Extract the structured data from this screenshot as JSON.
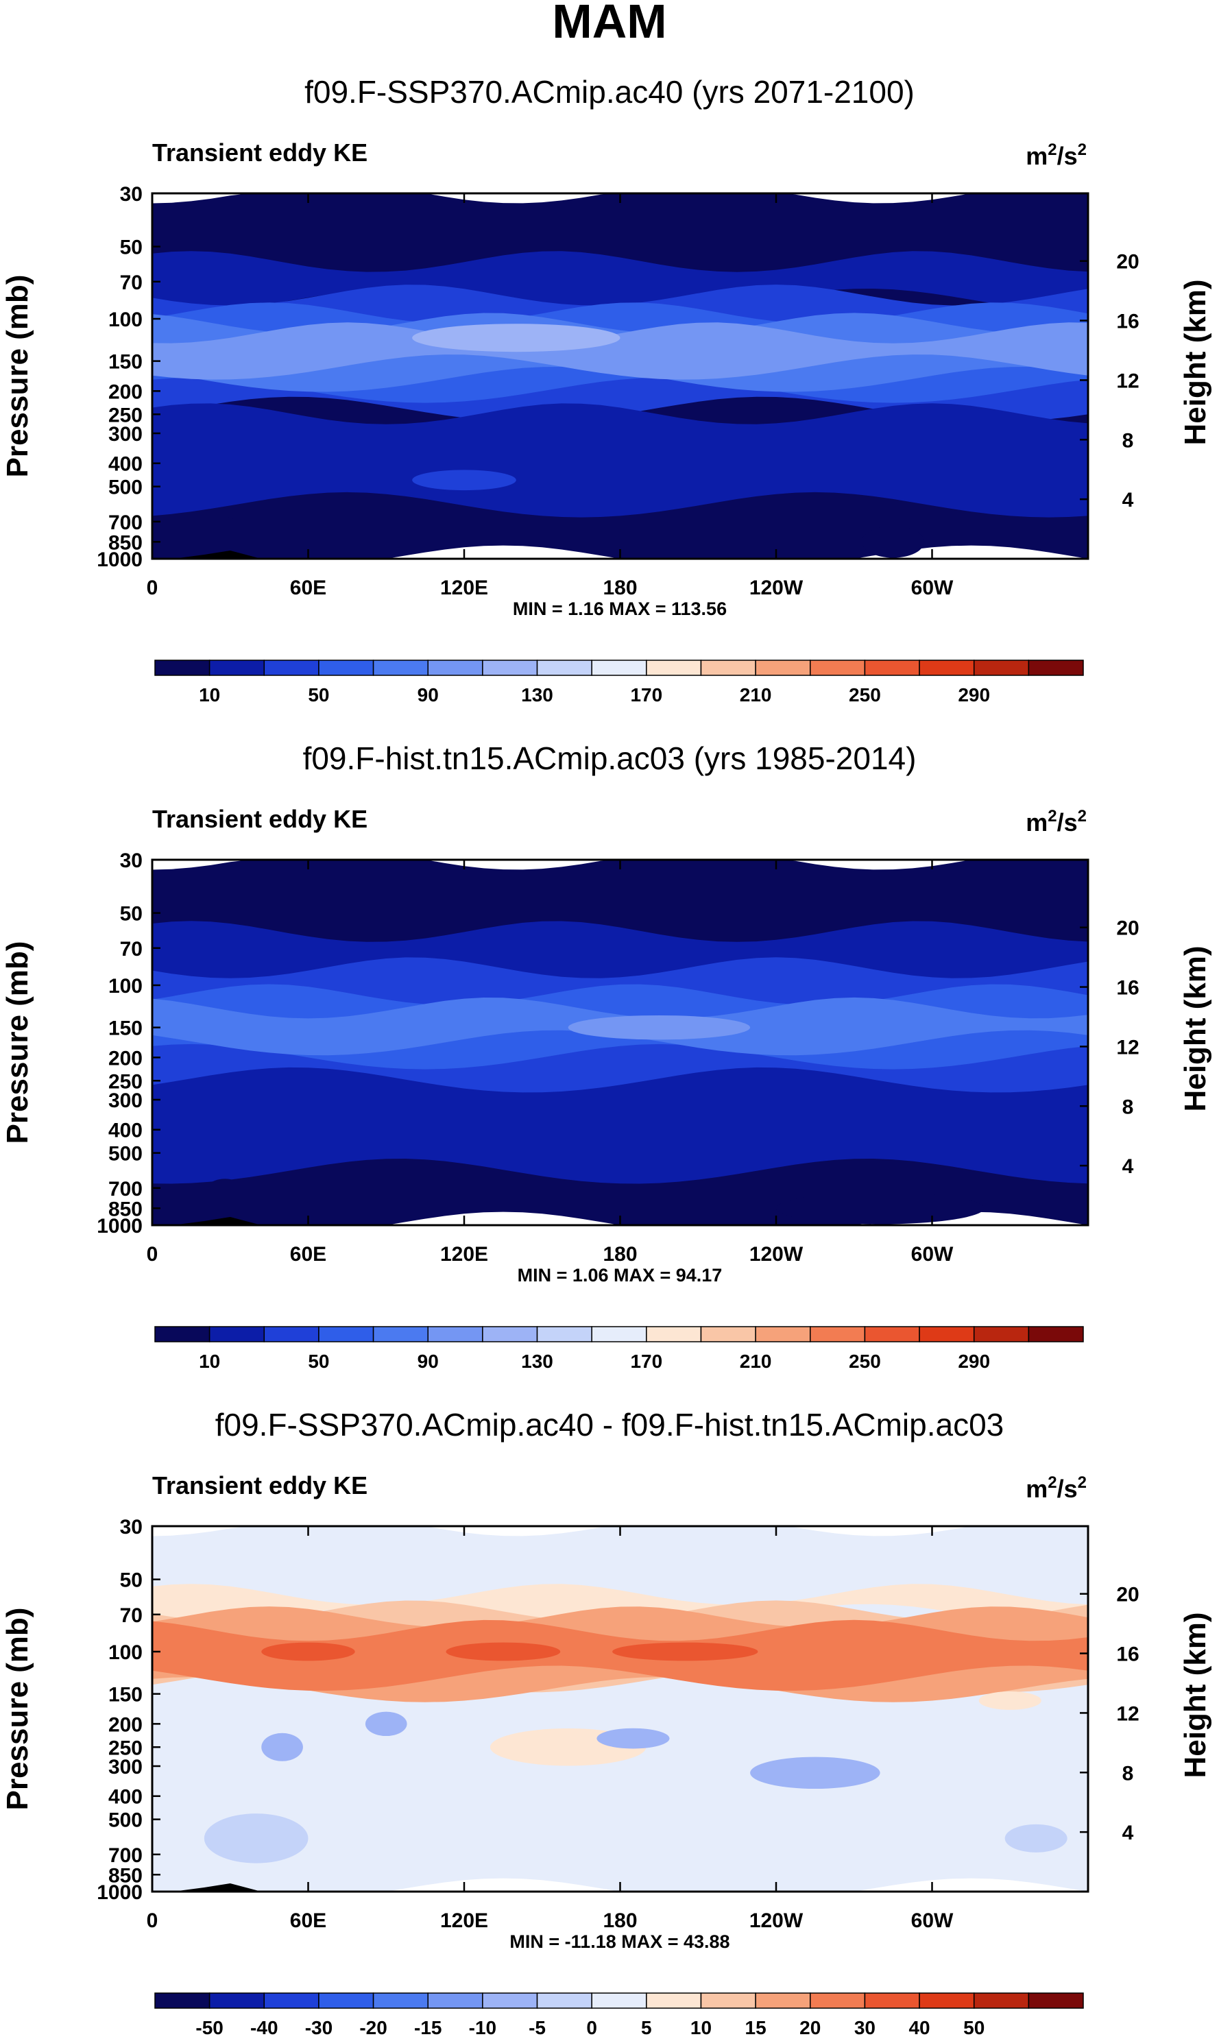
{
  "page_title": "MAM",
  "chart_data": [
    {
      "type": "heatmap",
      "title": "f09.F-SSP370.ACmip.ac40 (yrs 2071-2100)",
      "left_label": "Transient eddy KE",
      "units_base": "m",
      "units_sup1": "2",
      "units_mid": "/s",
      "units_sup2": "2",
      "ylabel": "Pressure (mb)",
      "ylabel_right": "Height (km)",
      "pressure_ticks": [
        "30",
        "50",
        "70",
        "100",
        "150",
        "200",
        "250",
        "300",
        "400",
        "500",
        "700",
        "850",
        "1000"
      ],
      "pressure_values": [
        30,
        50,
        70,
        100,
        150,
        200,
        250,
        300,
        400,
        500,
        700,
        850,
        1000
      ],
      "height_ticks": [
        "20",
        "16",
        "12",
        "8",
        "4"
      ],
      "height_values": [
        20,
        16,
        12,
        8,
        4
      ],
      "x_ticks": [
        "0",
        "60E",
        "120E",
        "180",
        "120W",
        "60W"
      ],
      "x_values": [
        0,
        60,
        120,
        180,
        240,
        300
      ],
      "xlim": [
        0,
        360
      ],
      "ylim_mb": [
        1000,
        30
      ],
      "stats": "MIN =   1.16   MAX = 113.56",
      "colorbar_labels": [
        "10",
        "50",
        "90",
        "130",
        "170",
        "210",
        "250",
        "290"
      ],
      "colorbar_colors": [
        "#08085a",
        "#0c1da8",
        "#1f40d8",
        "#2f5ee9",
        "#4b7af0",
        "#7496f3",
        "#9db3f6",
        "#c4d3f9",
        "#e6edfb",
        "#fde6d3",
        "#f9c6a7",
        "#f6a27a",
        "#f27c52",
        "#ea5630",
        "#de3a17",
        "#b9260f",
        "#7a0909"
      ],
      "colorbar_bounds": [
        0,
        10,
        30,
        50,
        70,
        90,
        110,
        130,
        150,
        170,
        190,
        210,
        230,
        250,
        270,
        290,
        310
      ],
      "bands": [
        {
          "p0": 1000,
          "p1": 30,
          "value": 5
        },
        {
          "p0": 85,
          "p1": 58,
          "value": 12
        },
        {
          "p0": 240,
          "p1": 80,
          "value": 35
        },
        {
          "p0": 200,
          "p1": 95,
          "value": 60
        },
        {
          "p0": 180,
          "p1": 105,
          "value": 80
        },
        {
          "p0": 160,
          "p1": 115,
          "value": 100
        },
        {
          "p0": 600,
          "p1": 250,
          "value": 12
        }
      ],
      "blobs": [
        {
          "lon": 140,
          "p": 120,
          "dlon": 40,
          "dp": 0.1,
          "value": 110
        },
        {
          "lon": 120,
          "p": 470,
          "dlon": 20,
          "dp": 0.06,
          "value": 30
        },
        {
          "lon": 28,
          "p": 800,
          "dlon": 7,
          "dp": 0.15,
          "value": 5
        },
        {
          "lon": 285,
          "p": 850,
          "dlon": 12,
          "dp": 0.12,
          "value": 5
        }
      ]
    },
    {
      "type": "heatmap",
      "title": "f09.F-hist.tn15.ACmip.ac03 (yrs 1985-2014)",
      "left_label": "Transient eddy KE",
      "units_base": "m",
      "units_sup1": "2",
      "units_mid": "/s",
      "units_sup2": "2",
      "ylabel": "Pressure (mb)",
      "ylabel_right": "Height (km)",
      "pressure_ticks": [
        "30",
        "50",
        "70",
        "100",
        "150",
        "200",
        "250",
        "300",
        "400",
        "500",
        "700",
        "850",
        "1000"
      ],
      "pressure_values": [
        30,
        50,
        70,
        100,
        150,
        200,
        250,
        300,
        400,
        500,
        700,
        850,
        1000
      ],
      "height_ticks": [
        "20",
        "16",
        "12",
        "8",
        "4"
      ],
      "height_values": [
        20,
        16,
        12,
        8,
        4
      ],
      "x_ticks": [
        "0",
        "60E",
        "120E",
        "180",
        "120W",
        "60W"
      ],
      "x_values": [
        0,
        60,
        120,
        180,
        240,
        300
      ],
      "xlim": [
        0,
        360
      ],
      "ylim_mb": [
        1000,
        30
      ],
      "stats": "MIN =   1.06   MAX =  94.17",
      "colorbar_labels": [
        "10",
        "50",
        "90",
        "130",
        "170",
        "210",
        "250",
        "290"
      ],
      "colorbar_colors": [
        "#08085a",
        "#0c1da8",
        "#1f40d8",
        "#2f5ee9",
        "#4b7af0",
        "#7496f3",
        "#9db3f6",
        "#c4d3f9",
        "#e6edfb",
        "#fde6d3",
        "#f9c6a7",
        "#f6a27a",
        "#f27c52",
        "#ea5630",
        "#de3a17",
        "#b9260f",
        "#7a0909"
      ],
      "colorbar_bounds": [
        0,
        10,
        30,
        50,
        70,
        90,
        110,
        130,
        150,
        170,
        190,
        210,
        230,
        250,
        270,
        290,
        310
      ],
      "bands": [
        {
          "p0": 1000,
          "p1": 30,
          "value": 5
        },
        {
          "p0": 600,
          "p1": 60,
          "value": 12
        },
        {
          "p0": 250,
          "p1": 85,
          "value": 35
        },
        {
          "p0": 200,
          "p1": 110,
          "value": 55
        },
        {
          "p0": 175,
          "p1": 125,
          "value": 75
        }
      ],
      "blobs": [
        {
          "lon": 195,
          "p": 150,
          "dlon": 35,
          "dp": 0.08,
          "value": 90
        },
        {
          "lon": 28,
          "p": 800,
          "dlon": 10,
          "dp": 0.2,
          "value": 5
        },
        {
          "lon": 280,
          "p": 850,
          "dlon": 40,
          "dp": 0.12,
          "value": 8
        }
      ]
    },
    {
      "type": "heatmap",
      "title": "f09.F-SSP370.ACmip.ac40 - f09.F-hist.tn15.ACmip.ac03",
      "left_label": "Transient eddy KE",
      "units_base": "m",
      "units_sup1": "2",
      "units_mid": "/s",
      "units_sup2": "2",
      "ylabel": "Pressure (mb)",
      "ylabel_right": "Height (km)",
      "pressure_ticks": [
        "30",
        "50",
        "70",
        "100",
        "150",
        "200",
        "250",
        "300",
        "400",
        "500",
        "700",
        "850",
        "1000"
      ],
      "pressure_values": [
        30,
        50,
        70,
        100,
        150,
        200,
        250,
        300,
        400,
        500,
        700,
        850,
        1000
      ],
      "height_ticks": [
        "20",
        "16",
        "12",
        "8",
        "4"
      ],
      "height_values": [
        20,
        16,
        12,
        8,
        4
      ],
      "x_ticks": [
        "0",
        "60E",
        "120E",
        "180",
        "120W",
        "60W"
      ],
      "x_values": [
        0,
        60,
        120,
        180,
        240,
        300
      ],
      "xlim": [
        0,
        360
      ],
      "ylim_mb": [
        1000,
        30
      ],
      "stats": "MIN = -11.18   MAX =  43.88",
      "colorbar_labels": [
        "-50",
        "-40",
        "-30",
        "-20",
        "-15",
        "-10",
        "-5",
        "0",
        "5",
        "10",
        "15",
        "20",
        "30",
        "40",
        "50"
      ],
      "colorbar_colors": [
        "#08085a",
        "#0c1da8",
        "#1f40d8",
        "#2f5ee9",
        "#4b7af0",
        "#7496f3",
        "#9db3f6",
        "#c4d3f9",
        "#e6edfb",
        "#fde6d3",
        "#f9c6a7",
        "#f6a27a",
        "#f27c52",
        "#ea5630",
        "#de3a17",
        "#b9260f",
        "#7a0909"
      ],
      "colorbar_bounds": [
        -60,
        -50,
        -40,
        -30,
        -20,
        -15,
        -10,
        -5,
        0,
        5,
        10,
        15,
        20,
        30,
        40,
        50,
        60
      ],
      "bands": [
        {
          "p0": 1000,
          "p1": 30,
          "value": 2
        },
        {
          "p0": 72,
          "p1": 58,
          "value": 7
        },
        {
          "p0": 132,
          "p1": 68,
          "value": 12
        },
        {
          "p0": 145,
          "p1": 72,
          "value": 17
        },
        {
          "p0": 130,
          "p1": 82,
          "value": 25
        }
      ],
      "blobs": [
        {
          "lon": 60,
          "p": 100,
          "dlon": 18,
          "dp": 0.05,
          "value": 35
        },
        {
          "lon": 135,
          "p": 100,
          "dlon": 22,
          "dp": 0.05,
          "value": 35
        },
        {
          "lon": 205,
          "p": 100,
          "dlon": 28,
          "dp": 0.05,
          "value": 35
        },
        {
          "lon": 160,
          "p": 250,
          "dlon": 30,
          "dp": 0.15,
          "value": 7
        },
        {
          "lon": 40,
          "p": 600,
          "dlon": 20,
          "dp": 0.22,
          "value": -3
        },
        {
          "lon": 50,
          "p": 250,
          "dlon": 8,
          "dp": 0.1,
          "value": -8
        },
        {
          "lon": 90,
          "p": 200,
          "dlon": 8,
          "dp": 0.08,
          "value": -7
        },
        {
          "lon": 185,
          "p": 230,
          "dlon": 14,
          "dp": 0.06,
          "value": -8
        },
        {
          "lon": 255,
          "p": 320,
          "dlon": 25,
          "dp": 0.12,
          "value": -10
        },
        {
          "lon": 340,
          "p": 600,
          "dlon": 12,
          "dp": 0.1,
          "value": -3
        },
        {
          "lon": 330,
          "p": 160,
          "dlon": 12,
          "dp": 0.05,
          "value": 7
        }
      ]
    }
  ]
}
